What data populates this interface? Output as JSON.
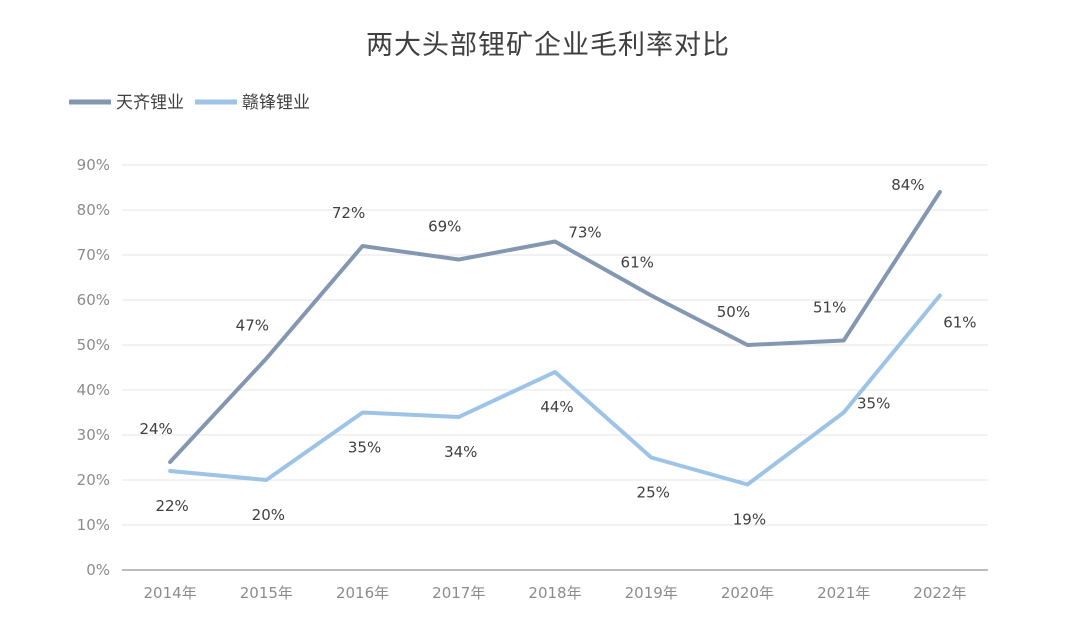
{
  "chart_data": {
    "type": "line",
    "title": "两大头部锂矿企业毛利率对比",
    "categories": [
      "2014年",
      "2015年",
      "2016年",
      "2017年",
      "2018年",
      "2019年",
      "2020年",
      "2021年",
      "2022年"
    ],
    "series": [
      {
        "name": "天齐锂业",
        "color": "#8497b0",
        "values": [
          24,
          47,
          72,
          69,
          73,
          61,
          50,
          51,
          84
        ],
        "labels": [
          "24%",
          "47%",
          "72%",
          "69%",
          "73%",
          "61%",
          "50%",
          "51%",
          "84%"
        ],
        "label_positions": [
          "above",
          "above",
          "above",
          "above",
          "right",
          "above",
          "above",
          "above",
          "above"
        ]
      },
      {
        "name": "赣锋锂业",
        "color": "#9dc3e6",
        "values": [
          22,
          20,
          35,
          34,
          44,
          25,
          19,
          35,
          61
        ],
        "labels": [
          "22%",
          "20%",
          "35%",
          "34%",
          "44%",
          "25%",
          "19%",
          "35%",
          "61%"
        ],
        "label_positions": [
          "below",
          "below",
          "below",
          "below",
          "below",
          "below",
          "below",
          "right",
          "below"
        ]
      }
    ],
    "y_ticks": [
      "0%",
      "10%",
      "20%",
      "30%",
      "40%",
      "50%",
      "60%",
      "70%",
      "80%",
      "90%"
    ],
    "ylim": [
      0,
      90
    ],
    "grid": true,
    "legend_position": "top-left",
    "gridline_color": "#e6e6e6",
    "axis_color": "#a6a6a6"
  }
}
